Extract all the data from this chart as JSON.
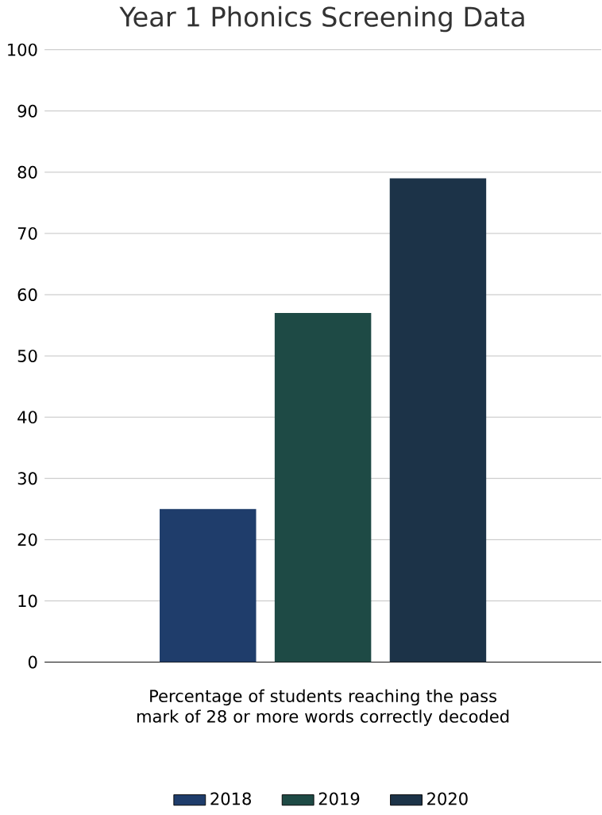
{
  "chart_data": {
    "type": "bar",
    "title": "Year 1 Phonics Screening Data",
    "xlabel": "Percentage of students reaching the pass mark of 28 or more words correctly decoded",
    "categories": [
      null
    ],
    "series": [
      {
        "name": "2018",
        "color": "#1f3d6b",
        "values": [
          25
        ]
      },
      {
        "name": "2019",
        "color": "#1e4a45",
        "values": [
          57
        ]
      },
      {
        "name": "2020",
        "color": "#1c3348",
        "values": [
          79
        ]
      }
    ],
    "ylim": [
      0,
      100
    ],
    "yticks": [
      0,
      10,
      20,
      30,
      40,
      50,
      60,
      70,
      80,
      90,
      100
    ],
    "grid": "y",
    "legend": "bottom"
  }
}
